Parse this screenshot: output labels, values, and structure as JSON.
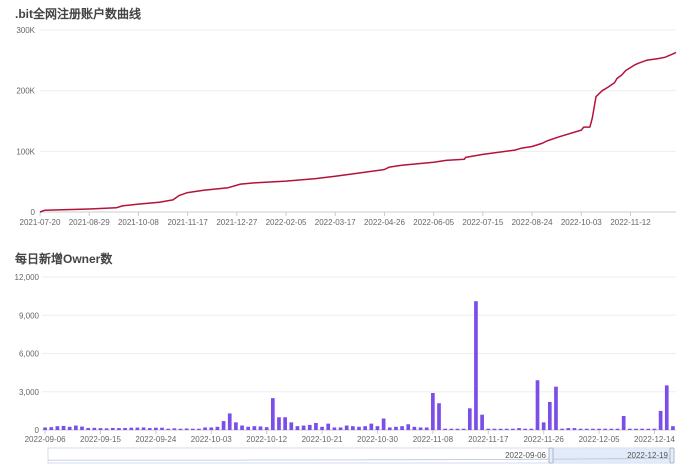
{
  "chart_data": [
    {
      "type": "line",
      "title": ".bit全网注册账户数曲线",
      "color": "#b5123c",
      "ylim": [
        0,
        300000
      ],
      "yticks": [
        0,
        100000,
        200000,
        300000
      ],
      "ytick_labels": [
        "0",
        "100K",
        "200K",
        "300K"
      ],
      "xticks": [
        "2021-07-20",
        "2021-08-29",
        "2021-10-08",
        "2021-11-17",
        "2021-12-27",
        "2022-02-05",
        "2022-03-17",
        "2022-04-26",
        "2022-06-05",
        "2022-07-15",
        "2022-08-24",
        "2022-10-03",
        "2022-11-12"
      ],
      "x_range": [
        "2021-07-20",
        "2022-12-19"
      ],
      "series": [
        {
          "x": [
            "2021-07-20",
            "2021-07-24",
            "2021-08-29",
            "2021-09-20",
            "2021-09-25",
            "2021-10-08",
            "2021-10-25",
            "2021-11-05",
            "2021-11-10",
            "2021-11-17",
            "2021-11-30",
            "2021-12-20",
            "2021-12-30",
            "2022-01-10",
            "2022-02-05",
            "2022-03-01",
            "2022-03-17",
            "2022-04-01",
            "2022-04-26",
            "2022-04-30",
            "2022-05-10",
            "2022-06-05",
            "2022-06-15",
            "2022-06-30",
            "2022-07-01",
            "2022-07-15",
            "2022-08-10",
            "2022-08-15",
            "2022-08-24",
            "2022-09-01",
            "2022-09-05",
            "2022-09-15",
            "2022-10-03",
            "2022-10-05",
            "2022-10-10",
            "2022-10-12",
            "2022-10-15",
            "2022-10-20",
            "2022-10-25",
            "2022-10-30",
            "2022-11-01",
            "2022-11-05",
            "2022-11-08",
            "2022-11-15",
            "2022-11-18",
            "2022-11-25",
            "2022-12-05",
            "2022-12-10",
            "2022-12-17",
            "2022-12-19"
          ],
          "y": [
            0,
            3000,
            5000,
            7000,
            10000,
            13000,
            16000,
            20000,
            27000,
            32000,
            36000,
            40000,
            46000,
            48000,
            51000,
            55000,
            59000,
            63000,
            70000,
            74000,
            77000,
            82000,
            85000,
            87000,
            90000,
            95000,
            102000,
            105000,
            108000,
            113000,
            117000,
            124000,
            135000,
            140000,
            140000,
            155000,
            190000,
            200000,
            206000,
            213000,
            220000,
            226000,
            233000,
            242000,
            245000,
            250000,
            253000,
            255000,
            261000,
            263000
          ]
        }
      ]
    },
    {
      "type": "bar",
      "title": "每日新增Owner数",
      "color": "#7b4ee8",
      "ylim": [
        0,
        12000
      ],
      "yticks": [
        0,
        3000,
        6000,
        9000,
        12000
      ],
      "ytick_labels": [
        "0",
        "3,000",
        "6,000",
        "9,000",
        "12,000"
      ],
      "xticks": [
        "2022-09-06",
        "2022-09-15",
        "2022-09-24",
        "2022-10-03",
        "2022-10-12",
        "2022-10-21",
        "2022-10-30",
        "2022-11-08",
        "2022-11-17",
        "2022-11-26",
        "2022-12-05",
        "2022-12-14"
      ],
      "x_start": "2022-09-06",
      "x_end": "2022-12-19",
      "values": [
        200,
        220,
        300,
        320,
        250,
        350,
        270,
        160,
        170,
        150,
        130,
        160,
        150,
        160,
        180,
        190,
        200,
        150,
        180,
        180,
        100,
        130,
        100,
        120,
        100,
        100,
        200,
        200,
        250,
        700,
        1300,
        600,
        350,
        250,
        300,
        280,
        220,
        2500,
        1000,
        1000,
        600,
        300,
        350,
        400,
        550,
        250,
        500,
        200,
        200,
        350,
        300,
        250,
        300,
        500,
        300,
        900,
        200,
        250,
        300,
        450,
        250,
        200,
        200,
        2900,
        2100,
        100,
        100,
        100,
        100,
        1700,
        10100,
        1200,
        100,
        100,
        100,
        100,
        100,
        150,
        100,
        100,
        3900,
        600,
        2200,
        3400,
        100,
        150,
        150,
        100,
        100,
        100,
        100,
        100,
        100,
        100,
        1100,
        100,
        100,
        100,
        100,
        100,
        1500,
        3500,
        300
      ],
      "dataZoom": {
        "start_label": "2022-09-06",
        "end_label": "2022-12-19"
      }
    }
  ]
}
